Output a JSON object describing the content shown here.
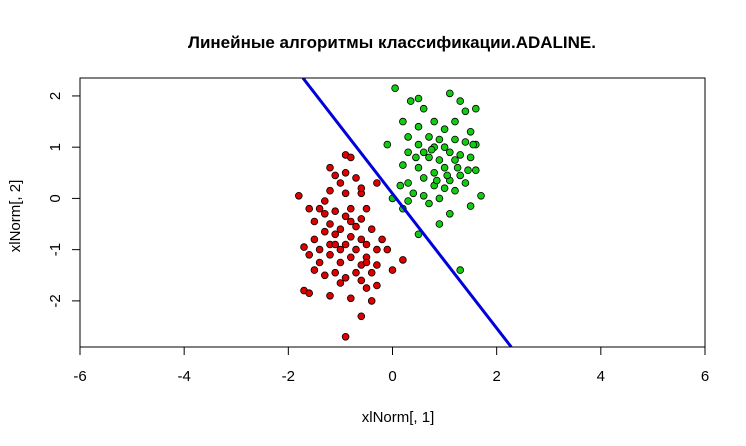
{
  "chart_data": {
    "type": "scatter",
    "title": "Линейные алгоритмы классификации.ADALINE.",
    "xlabel": "xlNorm[, 1]",
    "ylabel": "xlNorm[, 2]",
    "xlim": [
      -6,
      6
    ],
    "ylim": [
      -2.9,
      2.35
    ],
    "x_ticks": [
      "-6",
      "-4",
      "-2",
      "0",
      "2",
      "4",
      "6"
    ],
    "y_ticks": [
      "-2",
      "-1",
      "0",
      "1",
      "2"
    ],
    "grid": false,
    "legend": "none",
    "colors": {
      "class1": "#dd0000",
      "class2": "#11cc11",
      "line": "#0000dd",
      "frame": "#000000"
    },
    "separating_line": {
      "x": [
        -1.72,
        2.28
      ],
      "y": [
        2.35,
        -2.9
      ]
    },
    "series": [
      {
        "points": [
          [
            -0.9,
            0.85
          ],
          [
            -0.8,
            0.8
          ],
          [
            -1.2,
            0.6
          ],
          [
            -0.9,
            0.5
          ],
          [
            -0.7,
            0.4
          ],
          [
            -0.3,
            0.3
          ],
          [
            -1.0,
            0.3
          ],
          [
            -1.2,
            0.15
          ],
          [
            -1.8,
            0.05
          ],
          [
            -0.6,
            0.1
          ],
          [
            -0.9,
            0.1
          ],
          [
            -1.4,
            -0.2
          ],
          [
            -1.6,
            -0.2
          ],
          [
            -1.1,
            -0.25
          ],
          [
            -0.8,
            -0.2
          ],
          [
            -0.5,
            -0.2
          ],
          [
            -1.3,
            -0.3
          ],
          [
            -0.9,
            -0.35
          ],
          [
            -0.6,
            -0.4
          ],
          [
            -1.5,
            -0.45
          ],
          [
            -1.2,
            -0.5
          ],
          [
            -0.7,
            -0.55
          ],
          [
            -1.0,
            -0.6
          ],
          [
            -0.4,
            -0.6
          ],
          [
            -1.3,
            -0.65
          ],
          [
            -1.1,
            -0.7
          ],
          [
            -0.8,
            -0.75
          ],
          [
            -1.5,
            -0.8
          ],
          [
            -0.6,
            -0.8
          ],
          [
            -1.2,
            -0.9
          ],
          [
            -0.9,
            -0.9
          ],
          [
            -0.5,
            -0.9
          ],
          [
            -1.7,
            -0.95
          ],
          [
            -1.4,
            -1.0
          ],
          [
            -1.0,
            -1.0
          ],
          [
            -0.7,
            -1.0
          ],
          [
            -0.3,
            -1.0
          ],
          [
            -0.1,
            -1.0
          ],
          [
            -1.6,
            -1.1
          ],
          [
            -1.2,
            -1.1
          ],
          [
            -0.8,
            -1.15
          ],
          [
            -0.5,
            -1.15
          ],
          [
            -1.4,
            -1.25
          ],
          [
            -1.0,
            -1.25
          ],
          [
            -0.6,
            -1.3
          ],
          [
            -0.3,
            -1.3
          ],
          [
            0.2,
            -1.2
          ],
          [
            0.0,
            -1.4
          ],
          [
            -1.5,
            -1.4
          ],
          [
            -1.1,
            -1.45
          ],
          [
            -0.7,
            -1.45
          ],
          [
            -0.4,
            -1.45
          ],
          [
            -1.3,
            -1.5
          ],
          [
            -0.9,
            -1.55
          ],
          [
            -0.6,
            -1.6
          ],
          [
            -1.0,
            -1.65
          ],
          [
            -0.3,
            -1.7
          ],
          [
            -0.5,
            -1.75
          ],
          [
            -1.7,
            -1.8
          ],
          [
            -1.6,
            -1.85
          ],
          [
            -1.2,
            -1.9
          ],
          [
            -0.8,
            -1.95
          ],
          [
            -0.4,
            -2.0
          ],
          [
            -0.6,
            -2.3
          ],
          [
            -0.9,
            -2.7
          ],
          [
            -1.1,
            -0.9
          ],
          [
            -0.2,
            -0.8
          ],
          [
            -1.3,
            -0.05
          ],
          [
            -0.5,
            -1.25
          ],
          [
            -0.8,
            -0.45
          ],
          [
            -1.1,
            0.45
          ],
          [
            -0.6,
            0.2
          ]
        ]
      },
      {
        "points": [
          [
            0.05,
            2.15
          ],
          [
            1.1,
            2.05
          ],
          [
            0.35,
            1.9
          ],
          [
            0.5,
            1.95
          ],
          [
            1.3,
            1.9
          ],
          [
            0.6,
            1.75
          ],
          [
            1.6,
            1.75
          ],
          [
            1.4,
            1.7
          ],
          [
            0.2,
            1.5
          ],
          [
            0.8,
            1.5
          ],
          [
            1.2,
            1.5
          ],
          [
            0.5,
            1.4
          ],
          [
            1.0,
            1.35
          ],
          [
            1.5,
            1.3
          ],
          [
            0.3,
            1.2
          ],
          [
            0.7,
            1.2
          ],
          [
            0.9,
            1.15
          ],
          [
            1.2,
            1.15
          ],
          [
            1.4,
            1.1
          ],
          [
            -0.1,
            1.05
          ],
          [
            0.5,
            1.05
          ],
          [
            0.8,
            1.0
          ],
          [
            1.0,
            1.0
          ],
          [
            1.6,
            1.05
          ],
          [
            0.3,
            0.9
          ],
          [
            0.6,
            0.9
          ],
          [
            1.1,
            0.9
          ],
          [
            1.3,
            0.85
          ],
          [
            0.7,
            0.8
          ],
          [
            0.9,
            0.75
          ],
          [
            1.2,
            0.75
          ],
          [
            1.5,
            0.8
          ],
          [
            0.2,
            0.65
          ],
          [
            0.5,
            0.6
          ],
          [
            1.0,
            0.6
          ],
          [
            1.6,
            0.55
          ],
          [
            0.8,
            0.5
          ],
          [
            1.3,
            0.45
          ],
          [
            0.6,
            0.4
          ],
          [
            1.1,
            0.35
          ],
          [
            0.3,
            0.3
          ],
          [
            1.4,
            0.3
          ],
          [
            0.8,
            0.25
          ],
          [
            1.0,
            0.2
          ],
          [
            0.4,
            0.1
          ],
          [
            1.2,
            0.15
          ],
          [
            0.6,
            0.05
          ],
          [
            0.0,
            0.0
          ],
          [
            0.9,
            0.0
          ],
          [
            1.7,
            0.05
          ],
          [
            0.3,
            -0.05
          ],
          [
            0.7,
            -0.1
          ],
          [
            1.5,
            -0.15
          ],
          [
            0.2,
            -0.2
          ],
          [
            1.1,
            -0.3
          ],
          [
            0.9,
            -0.5
          ],
          [
            0.5,
            -0.7
          ],
          [
            1.3,
            -1.4
          ],
          [
            1.05,
            0.45
          ],
          [
            0.45,
            0.8
          ],
          [
            1.45,
            0.55
          ],
          [
            0.75,
            0.95
          ],
          [
            1.25,
            0.6
          ],
          [
            0.15,
            0.25
          ],
          [
            1.55,
            1.05
          ],
          [
            0.85,
            0.35
          ]
        ]
      }
    ]
  }
}
